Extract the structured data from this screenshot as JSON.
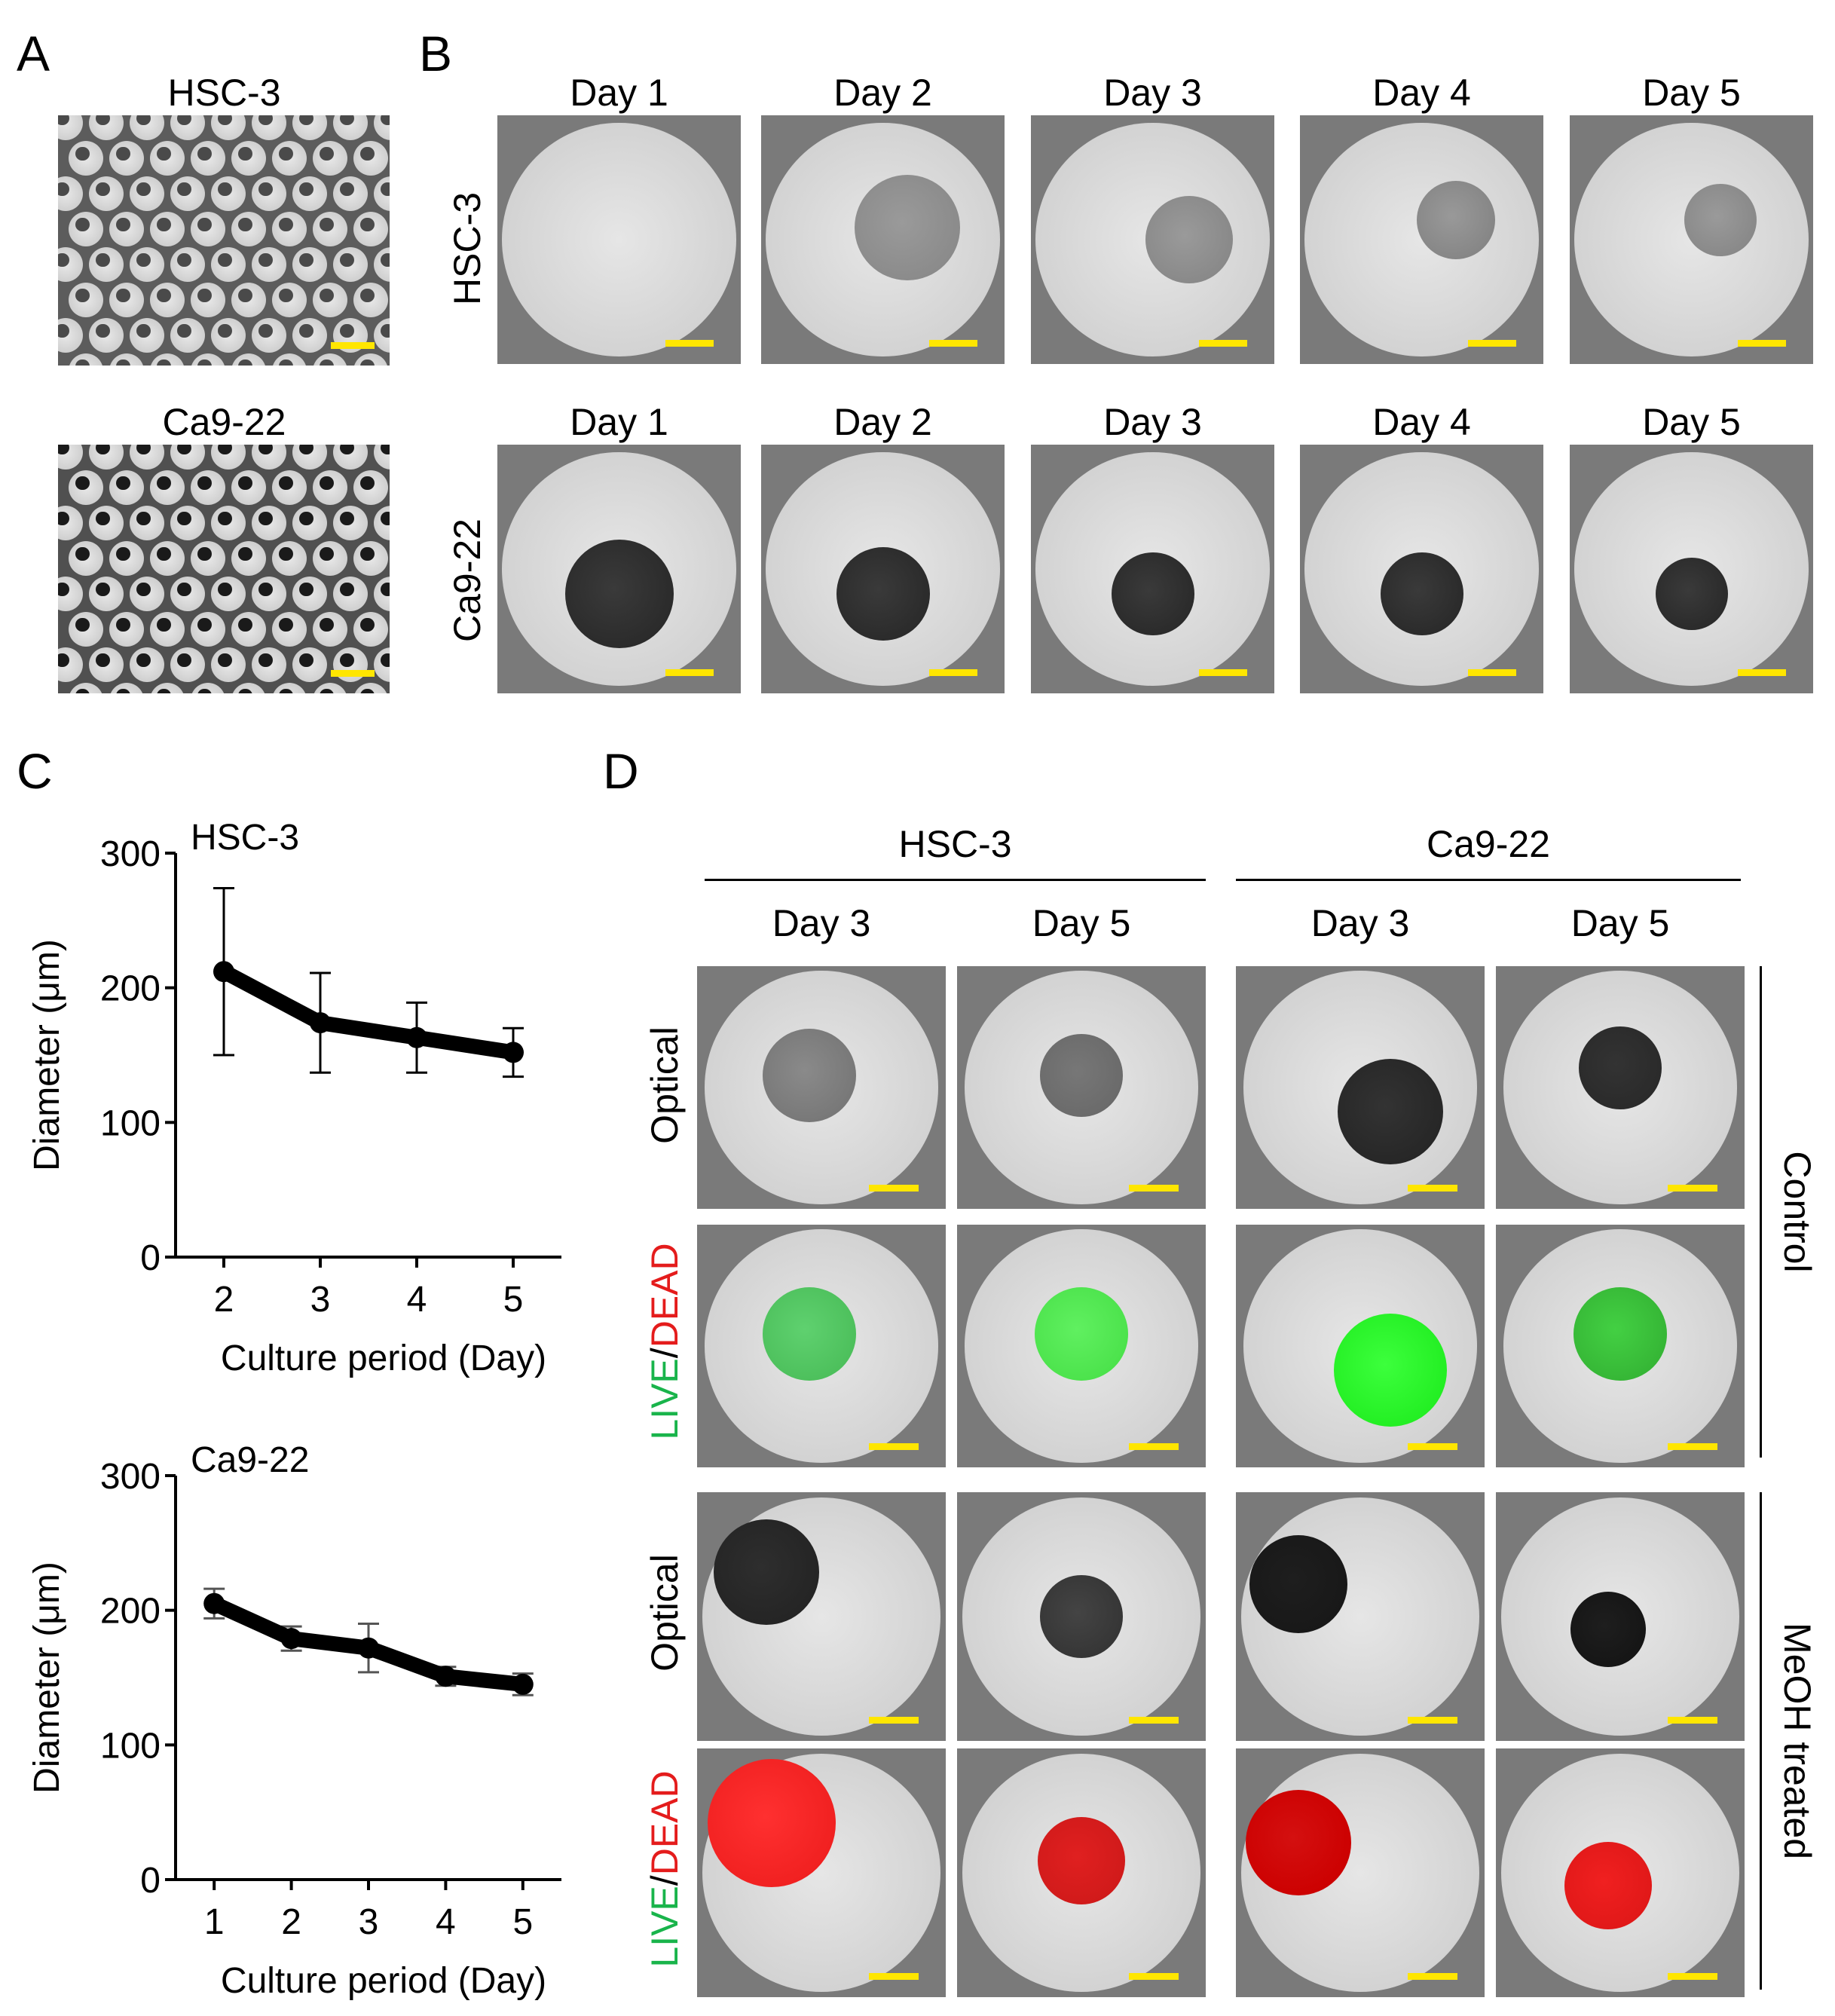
{
  "panels": {
    "a": "A",
    "b": "B",
    "c": "C",
    "d": "D"
  },
  "panel_a": {
    "titles": [
      "HSC-3",
      "Ca9-22"
    ]
  },
  "panel_b": {
    "days": [
      "Day 1",
      "Day 2",
      "Day 3",
      "Day 4",
      "Day 5"
    ],
    "rows": [
      "HSC-3",
      "Ca9-22"
    ]
  },
  "panel_d": {
    "groups": [
      "HSC-3",
      "Ca9-22"
    ],
    "days": [
      "Day 3",
      "Day 5",
      "Day 3",
      "Day 5"
    ],
    "row_labels": {
      "optical": "Optical",
      "live": "LIVE",
      "slash": "/",
      "dead": "DEAD"
    },
    "conditions": [
      "Control",
      "MeOH treated"
    ]
  },
  "colors": {
    "scale_bar": "#ffe600",
    "live": "#19b44b",
    "dead": "#e41c1c"
  },
  "chart_data": [
    {
      "type": "line",
      "title": "HSC-3",
      "xlabel": "Culture period (Day)",
      "ylabel": "Diameter (μm)",
      "x": [
        2,
        3,
        4,
        5
      ],
      "values": [
        212,
        174,
        163,
        152
      ],
      "error": [
        62,
        37,
        26,
        18
      ],
      "xlim": [
        1.5,
        5.5
      ],
      "ylim": [
        0,
        300
      ],
      "yticks": [
        0,
        100,
        200,
        300
      ]
    },
    {
      "type": "line",
      "title": "Ca9-22",
      "xlabel": "Culture period (Day)",
      "ylabel": "Diameter (μm)",
      "x": [
        1,
        2,
        3,
        4,
        5
      ],
      "values": [
        205,
        179,
        172,
        151,
        145
      ],
      "error": [
        11,
        9,
        18,
        7,
        8
      ],
      "xlim": [
        0.5,
        5.5
      ],
      "ylim": [
        0,
        300
      ],
      "yticks": [
        0,
        100,
        200,
        300
      ]
    }
  ]
}
